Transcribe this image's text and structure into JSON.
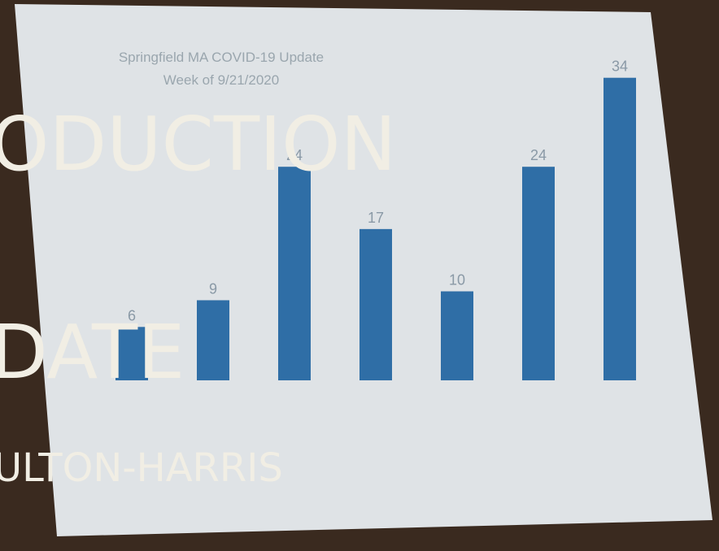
{
  "slide": {
    "title_fragment": "ODUCTION",
    "subtitle_fragment": "DATE",
    "author_fragment": "ULTON-HARRIS"
  },
  "chart_data": {
    "type": "bar",
    "title": "Springfield MA COVID-19 Update",
    "subtitle": "Week of 9/21/2020",
    "categories": [
      null,
      null,
      null,
      null,
      null,
      null,
      null
    ],
    "values": [
      6,
      9,
      24,
      17,
      10,
      24,
      34
    ],
    "color": "#2f6ea6",
    "ylim": [
      0,
      40
    ]
  }
}
